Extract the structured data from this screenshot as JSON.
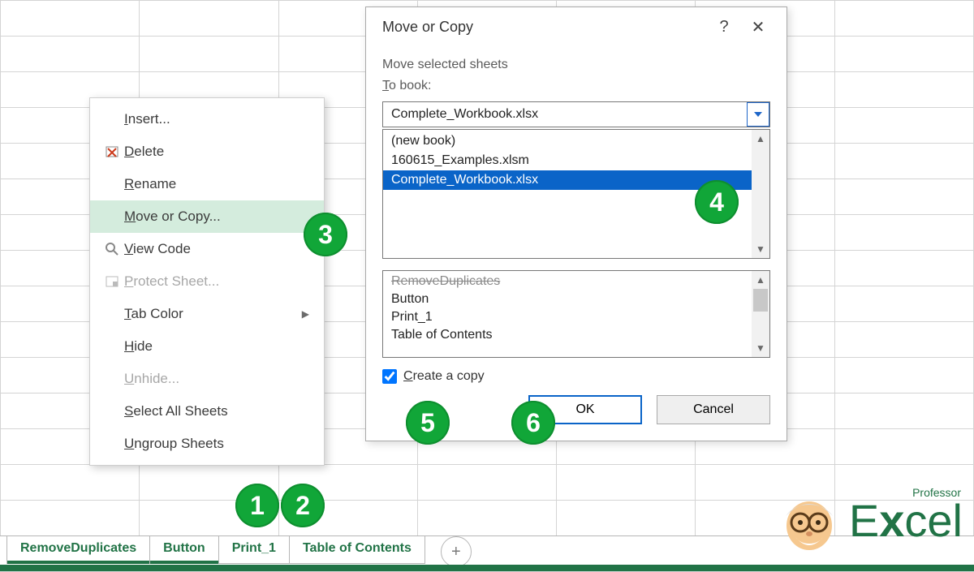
{
  "grid": {
    "rows": 16,
    "cols": 7,
    "border_color": "#d4d4d4"
  },
  "tabs": {
    "items": [
      {
        "label": "RemoveDuplicates",
        "active": true
      },
      {
        "label": "Button",
        "active": true
      },
      {
        "label": "Print_1",
        "active": false
      },
      {
        "label": "Table of Contents",
        "active": false
      }
    ],
    "new_tab_glyph": "+"
  },
  "context_menu": {
    "items": [
      {
        "label": "Insert...",
        "underline": "I",
        "icon": "",
        "enabled": true
      },
      {
        "label": "Delete",
        "underline": "D",
        "icon": "delete",
        "enabled": true
      },
      {
        "label": "Rename",
        "underline": "R",
        "icon": "",
        "enabled": true
      },
      {
        "label": "Move or Copy...",
        "underline": "M",
        "icon": "",
        "enabled": true,
        "highlight": true
      },
      {
        "label": "View Code",
        "underline": "V",
        "icon": "code",
        "enabled": true
      },
      {
        "label": "Protect Sheet...",
        "underline": "P",
        "icon": "protect",
        "enabled": false
      },
      {
        "label": "Tab Color",
        "underline": "T",
        "icon": "",
        "enabled": true,
        "submenu": true
      },
      {
        "label": "Hide",
        "underline": "H",
        "icon": "",
        "enabled": true
      },
      {
        "label": "Unhide...",
        "underline": "U",
        "icon": "",
        "enabled": false
      },
      {
        "label": "Select All Sheets",
        "underline": "S",
        "icon": "",
        "enabled": true
      },
      {
        "label": "Ungroup Sheets",
        "underline": "U",
        "icon": "",
        "enabled": true
      }
    ]
  },
  "dialog": {
    "title": "Move or Copy",
    "help_glyph": "?",
    "close_glyph": "✕",
    "move_label": "Move selected sheets",
    "to_book_label": "To book:",
    "to_book_underline": "T",
    "combo_value": "Complete_Workbook.xlsx",
    "book_list": [
      {
        "label": "(new book)",
        "selected": false
      },
      {
        "label": "160615_Examples.xlsm",
        "selected": false
      },
      {
        "label": "Complete_Workbook.xlsx",
        "selected": true
      }
    ],
    "sheet_list": [
      "RemoveDuplicates",
      "Button",
      "Print_1",
      "Table of Contents"
    ],
    "sheet_list_partial_top": "RemoveDuplicates",
    "checkbox_label": "Create a copy",
    "checkbox_underline": "C",
    "checkbox_checked": true,
    "ok_label": "OK",
    "cancel_label": "Cancel"
  },
  "badges": {
    "b1": "1",
    "b2": "2",
    "b3": "3",
    "b4": "4",
    "b5": "5",
    "b6": "6"
  },
  "logo": {
    "word": "Excel",
    "prefix": "Professor"
  },
  "colors": {
    "excel_green": "#217346",
    "badge_green": "#11a638",
    "selection_blue": "#0a64c8",
    "highlight_bg": "#d4ecdd",
    "grid_line": "#d4d4d4",
    "disabled_text": "#a7a7a7"
  }
}
